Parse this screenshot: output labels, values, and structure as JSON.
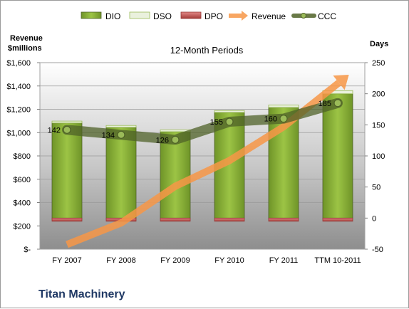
{
  "chart_data": {
    "type": "bar",
    "title": "12-Month Periods",
    "categories": [
      "FY 2007",
      "FY 2008",
      "FY 2009",
      "FY 2010",
      "FY 2011",
      "TTM 10-2011"
    ],
    "left_axis": {
      "title_line1": "Revenue",
      "title_line2": "$millions",
      "ylim": [
        0,
        1600
      ],
      "tick_values": [
        0,
        200,
        400,
        600,
        800,
        1000,
        1200,
        1400,
        1600
      ],
      "tick_labels": [
        "$-",
        "$200",
        "$400",
        "$600",
        "$800",
        "$1,000",
        "$1,200",
        "$1,400",
        "$1,600"
      ]
    },
    "right_axis": {
      "title": "Days",
      "ylim": [
        -50,
        250
      ],
      "tick_values": [
        -50,
        0,
        50,
        100,
        150,
        200,
        250
      ],
      "tick_labels": [
        "-50",
        "0",
        "50",
        "100",
        "150",
        "200",
        "250"
      ]
    },
    "series": [
      {
        "name": "DIO",
        "axis": "right",
        "kind": "bar",
        "color": "#8db33a",
        "values": [
          153,
          146,
          139,
          170,
          178,
          200
        ]
      },
      {
        "name": "DSO",
        "axis": "right",
        "kind": "bar",
        "color": "#eaf1dd",
        "values": [
          3,
          3,
          3,
          3,
          4,
          5
        ]
      },
      {
        "name": "DPO",
        "axis": "right",
        "kind": "bar",
        "color": "#c0504d",
        "values": [
          -5,
          -5,
          -5,
          -5,
          -5,
          -5
        ]
      },
      {
        "name": "Revenue",
        "axis": "left",
        "kind": "arrow",
        "color": "#f79646",
        "values": [
          40,
          225,
          540,
          760,
          1050,
          1420
        ]
      },
      {
        "name": "CCC",
        "axis": "right",
        "kind": "line",
        "color": "#4f6228",
        "values": [
          142,
          134,
          126,
          155,
          160,
          185
        ]
      }
    ],
    "data_labels": [
      "142",
      "134",
      "126",
      "155",
      "160",
      "185"
    ],
    "grid": true,
    "legend_position": "top"
  },
  "footer": {
    "company": "Titan Machinery"
  }
}
